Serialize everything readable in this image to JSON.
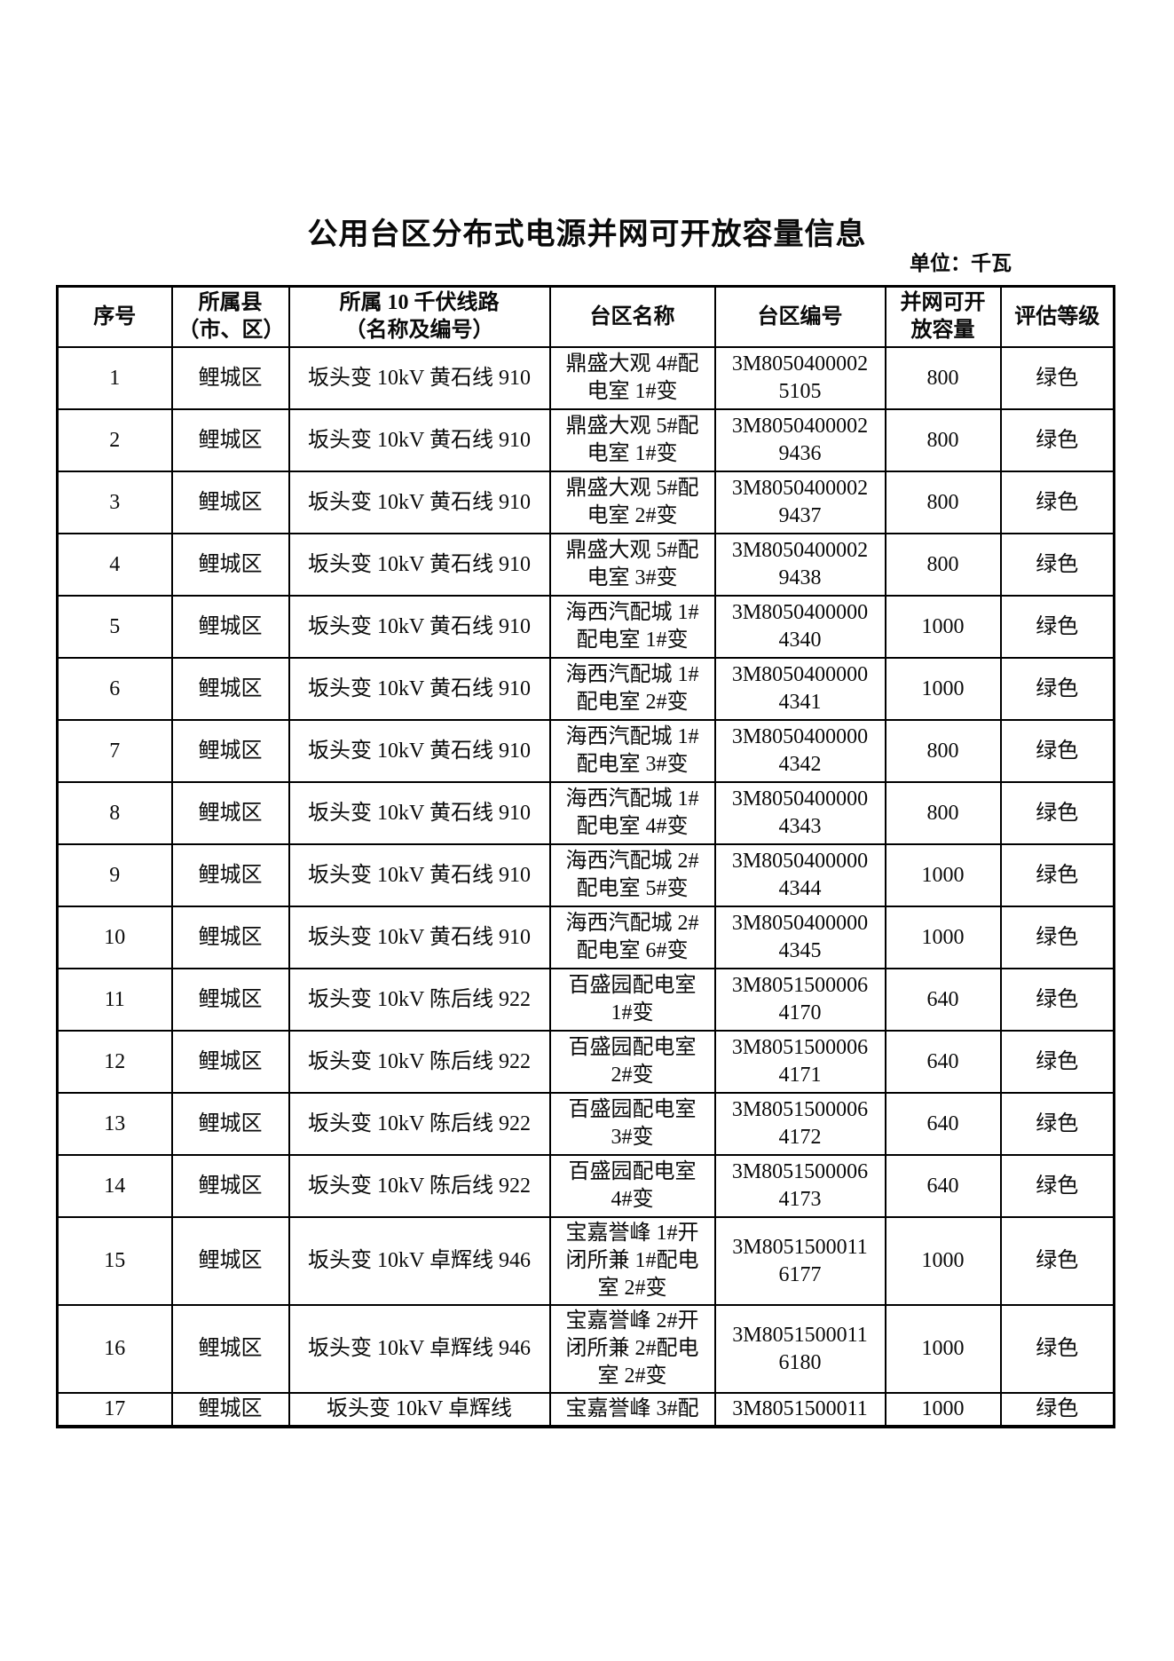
{
  "page": {
    "title": "公用台区分布式电源并网可开放容量信息",
    "unit_label": "单位：千瓦"
  },
  "table": {
    "headers": [
      "序号",
      "所属县\n（市、区）",
      "所属 10 千伏线路\n（名称及编号）",
      "台区名称",
      "台区编号",
      "并网可开\n放容量",
      "评估等级"
    ],
    "rows": [
      {
        "seq": "1",
        "district": "鲤城区",
        "line": "坂头变 10kV 黄石线 910",
        "station": "鼎盛大观 4#配电室 1#变",
        "station_id": "3M80504000025105",
        "capacity": "800",
        "grade": "绿色"
      },
      {
        "seq": "2",
        "district": "鲤城区",
        "line": "坂头变 10kV 黄石线 910",
        "station": "鼎盛大观 5#配电室 1#变",
        "station_id": "3M80504000029436",
        "capacity": "800",
        "grade": "绿色"
      },
      {
        "seq": "3",
        "district": "鲤城区",
        "line": "坂头变 10kV 黄石线 910",
        "station": "鼎盛大观 5#配电室 2#变",
        "station_id": "3M80504000029437",
        "capacity": "800",
        "grade": "绿色"
      },
      {
        "seq": "4",
        "district": "鲤城区",
        "line": "坂头变 10kV 黄石线 910",
        "station": "鼎盛大观 5#配电室 3#变",
        "station_id": "3M80504000029438",
        "capacity": "800",
        "grade": "绿色"
      },
      {
        "seq": "5",
        "district": "鲤城区",
        "line": "坂头变 10kV 黄石线 910",
        "station": "海西汽配城 1#配电室 1#变",
        "station_id": "3M80504000004340",
        "capacity": "1000",
        "grade": "绿色"
      },
      {
        "seq": "6",
        "district": "鲤城区",
        "line": "坂头变 10kV 黄石线 910",
        "station": "海西汽配城 1#配电室 2#变",
        "station_id": "3M80504000004341",
        "capacity": "1000",
        "grade": "绿色"
      },
      {
        "seq": "7",
        "district": "鲤城区",
        "line": "坂头变 10kV 黄石线 910",
        "station": "海西汽配城 1#配电室 3#变",
        "station_id": "3M80504000004342",
        "capacity": "800",
        "grade": "绿色"
      },
      {
        "seq": "8",
        "district": "鲤城区",
        "line": "坂头变 10kV 黄石线 910",
        "station": "海西汽配城 1#配电室 4#变",
        "station_id": "3M80504000004343",
        "capacity": "800",
        "grade": "绿色"
      },
      {
        "seq": "9",
        "district": "鲤城区",
        "line": "坂头变 10kV 黄石线 910",
        "station": "海西汽配城 2#配电室 5#变",
        "station_id": "3M80504000004344",
        "capacity": "1000",
        "grade": "绿色"
      },
      {
        "seq": "10",
        "district": "鲤城区",
        "line": "坂头变 10kV 黄石线 910",
        "station": "海西汽配城 2#配电室 6#变",
        "station_id": "3M80504000004345",
        "capacity": "1000",
        "grade": "绿色"
      },
      {
        "seq": "11",
        "district": "鲤城区",
        "line": "坂头变 10kV 陈后线 922",
        "station": "百盛园配电室 1#变",
        "station_id": "3M80515000064170",
        "capacity": "640",
        "grade": "绿色"
      },
      {
        "seq": "12",
        "district": "鲤城区",
        "line": "坂头变 10kV 陈后线 922",
        "station": "百盛园配电室 2#变",
        "station_id": "3M80515000064171",
        "capacity": "640",
        "grade": "绿色"
      },
      {
        "seq": "13",
        "district": "鲤城区",
        "line": "坂头变 10kV 陈后线 922",
        "station": "百盛园配电室 3#变",
        "station_id": "3M80515000064172",
        "capacity": "640",
        "grade": "绿色"
      },
      {
        "seq": "14",
        "district": "鲤城区",
        "line": "坂头变 10kV 陈后线 922",
        "station": "百盛园配电室 4#变",
        "station_id": "3M80515000064173",
        "capacity": "640",
        "grade": "绿色"
      },
      {
        "seq": "15",
        "district": "鲤城区",
        "line": "坂头变 10kV 卓辉线 946",
        "station": "宝嘉誉峰 1#开闭所兼 1#配电室 2#变",
        "station_id": "3M80515000116177",
        "capacity": "1000",
        "grade": "绿色"
      },
      {
        "seq": "16",
        "district": "鲤城区",
        "line": "坂头变 10kV 卓辉线 946",
        "station": "宝嘉誉峰 2#开闭所兼 2#配电室 2#变",
        "station_id": "3M80515000116180",
        "capacity": "1000",
        "grade": "绿色"
      },
      {
        "seq": "17",
        "district": "鲤城区",
        "line": "坂头变 10kV 卓辉线",
        "station": "宝嘉誉峰 3#配",
        "station_id": "3M8051500011",
        "capacity": "1000",
        "grade": "绿色"
      }
    ]
  }
}
